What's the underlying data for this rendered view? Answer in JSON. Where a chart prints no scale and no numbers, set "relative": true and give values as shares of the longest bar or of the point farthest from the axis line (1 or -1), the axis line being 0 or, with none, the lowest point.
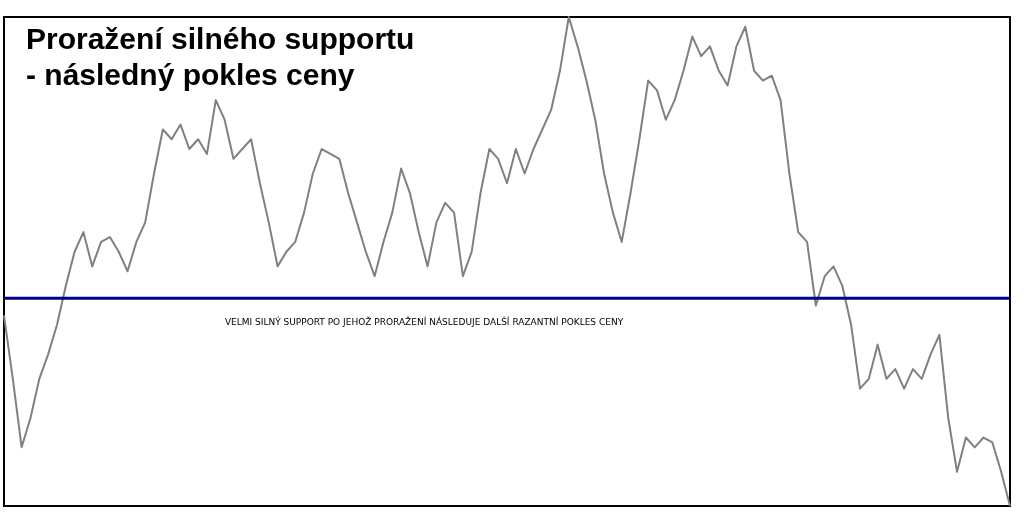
{
  "chart_data": {
    "type": "line",
    "relative": true,
    "title": "Proražení silného supportu\n- následný pokles ceny",
    "categories": [
      null,
      null,
      null,
      null,
      null,
      null,
      null,
      null,
      null,
      null,
      null,
      null,
      null,
      null,
      null,
      null,
      null,
      null,
      null,
      null,
      null,
      null,
      null,
      null,
      null,
      null,
      null,
      null,
      null,
      null,
      null,
      null,
      null,
      null,
      null,
      null,
      null,
      null,
      null,
      null,
      null,
      null,
      null,
      null,
      null,
      null,
      null,
      null,
      null,
      null,
      null,
      null,
      null,
      null,
      null,
      null,
      null,
      null,
      null,
      null,
      null,
      null,
      null,
      null,
      null,
      null,
      null,
      null,
      null,
      null,
      null,
      null,
      null,
      null,
      null,
      null,
      null,
      null,
      null,
      null,
      null,
      null,
      null,
      null,
      null,
      null,
      null,
      null,
      null,
      null,
      null,
      null,
      null,
      null,
      null,
      null,
      null,
      null,
      null,
      null,
      null,
      null,
      null,
      null,
      null,
      null,
      null,
      null,
      null,
      null,
      null,
      null,
      null,
      null,
      null
    ],
    "series": [
      {
        "color": "#808080",
        "values": [
          0.39,
          0.26,
          0.12,
          0.18,
          0.26,
          0.31,
          0.37,
          0.45,
          0.52,
          0.56,
          0.49,
          0.54,
          0.55,
          0.52,
          0.48,
          0.54,
          0.58,
          0.68,
          0.77,
          0.75,
          0.78,
          0.73,
          0.75,
          0.72,
          0.83,
          0.79,
          0.71,
          0.73,
          0.75,
          0.66,
          0.58,
          0.49,
          0.52,
          0.54,
          0.6,
          0.68,
          0.73,
          0.72,
          0.71,
          0.64,
          0.58,
          0.52,
          0.47,
          0.54,
          0.6,
          0.69,
          0.64,
          0.56,
          0.49,
          0.58,
          0.62,
          0.6,
          0.47,
          0.52,
          0.64,
          0.73,
          0.71,
          0.66,
          0.73,
          0.68,
          0.73,
          0.77,
          0.81,
          0.89,
          1,
          0.94,
          0.87,
          0.79,
          0.68,
          0.6,
          0.54,
          0.64,
          0.75,
          0.87,
          0.85,
          0.79,
          0.83,
          0.89,
          0.96,
          0.92,
          0.94,
          0.89,
          0.86,
          0.94,
          0.98,
          0.89,
          0.87,
          0.88,
          0.83,
          0.68,
          0.56,
          0.54,
          0.41,
          0.47,
          0.49,
          0.45,
          0.37,
          0.24,
          0.26,
          0.33,
          0.26,
          0.28,
          0.24,
          0.28,
          0.26,
          0.31,
          0.35,
          0.18,
          0.07,
          0.14,
          0.12,
          0.14,
          0.13,
          0.07,
          0
        ]
      }
    ],
    "ref_lines": [
      {
        "axis": "y",
        "value": 0.425,
        "color": "#000080"
      }
    ],
    "annotations": [
      "VELMI SILNÝ SUPPORT PO JEHOŽ PRORAŽENÍ NÁSLEDUJE DALŠÍ RAZANTNÍ POKLES CENY"
    ]
  }
}
